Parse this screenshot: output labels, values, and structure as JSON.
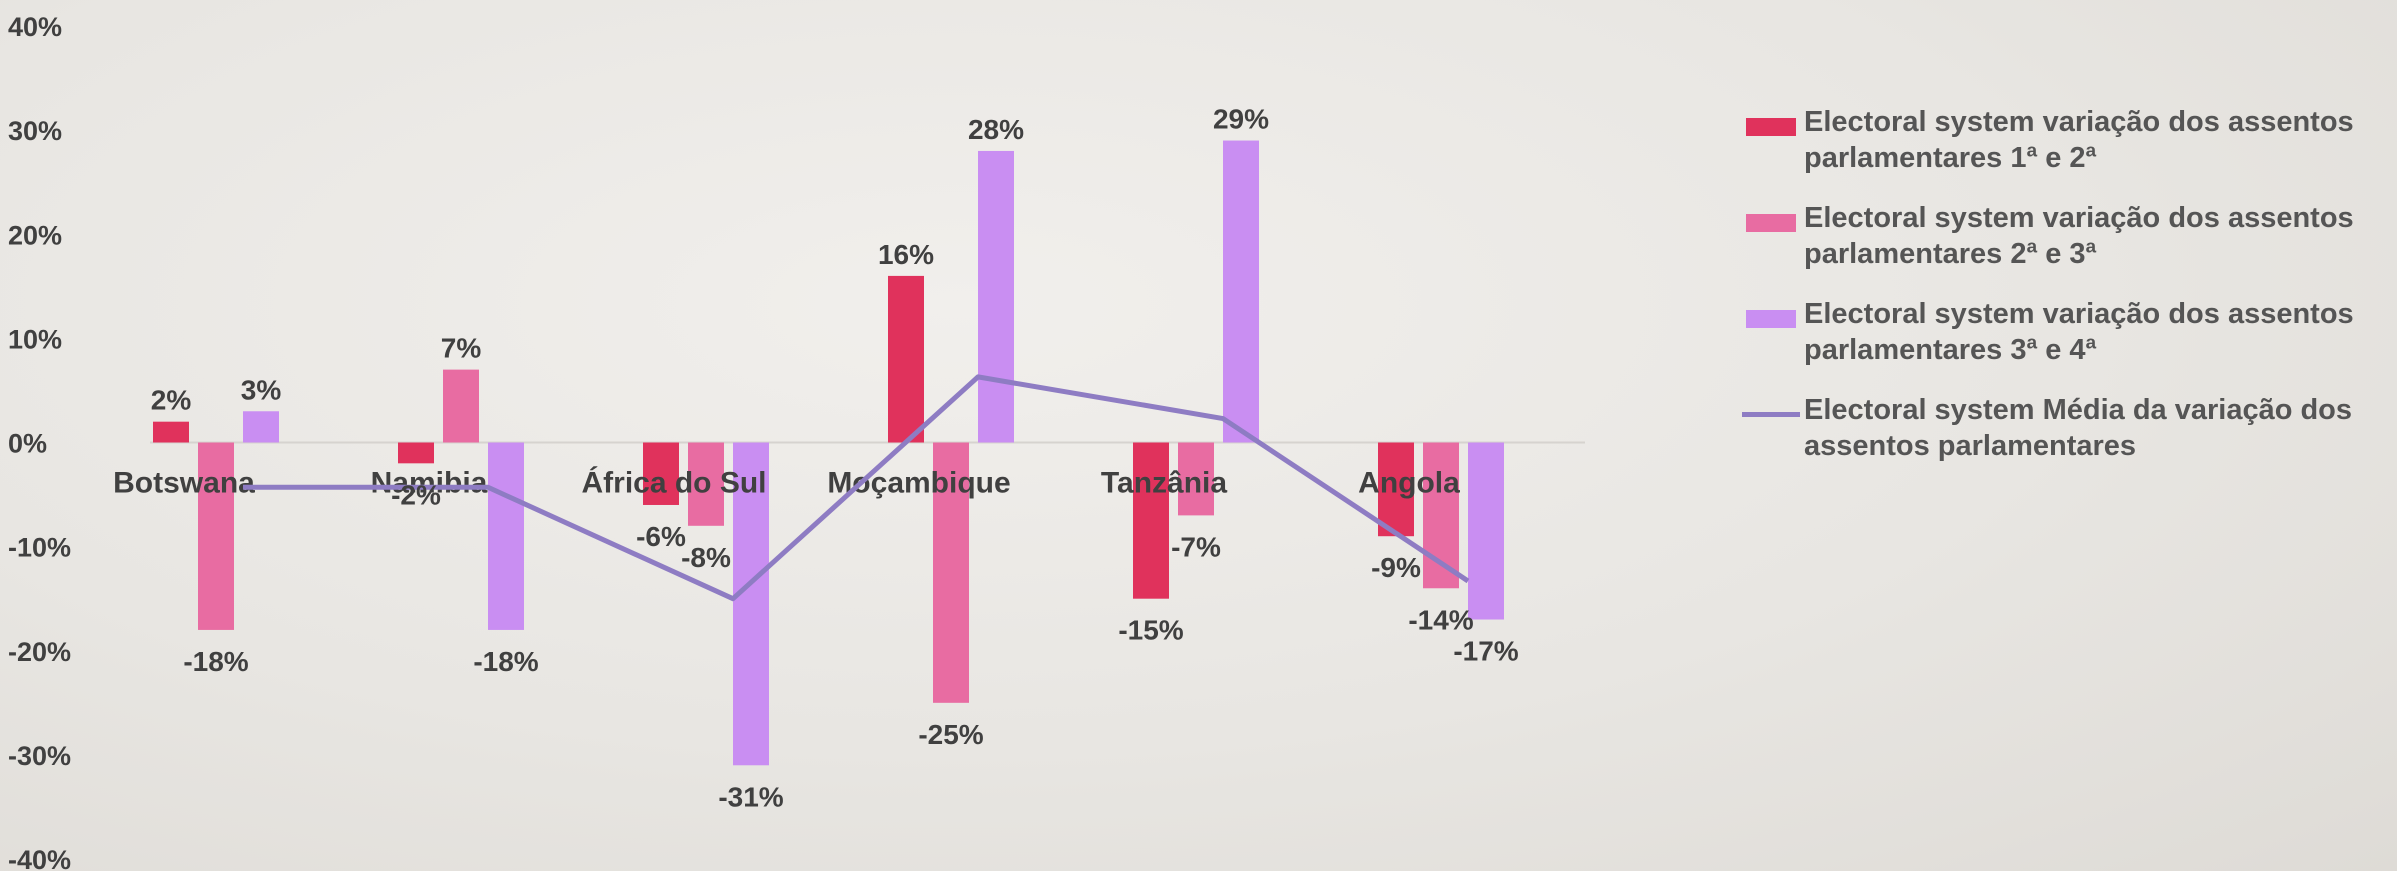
{
  "chart_data": {
    "type": "bar",
    "categories": [
      "Botswana",
      "Namibia",
      "África do Sul",
      "Moçambique",
      "Tanzânia",
      "Angola"
    ],
    "series": [
      {
        "name": "Electoral system variação dos assentos parlamentares 1ª e 2ª",
        "kind": "bar",
        "color": "#e0325c",
        "values": [
          2,
          -2,
          -6,
          16,
          -15,
          -9
        ],
        "labels": [
          "2%",
          "-2%",
          "-6%",
          "16%",
          "-15%",
          "-9%"
        ]
      },
      {
        "name": "Electoral system variação dos assentos parlamentares 2ª e 3ª",
        "kind": "bar",
        "color": "#e86ca2",
        "values": [
          -18,
          7,
          -8,
          -25,
          -7,
          -14
        ],
        "labels": [
          "-18%",
          "7%",
          "-8%",
          "-25%",
          "-7%",
          "-14%"
        ]
      },
      {
        "name": "Electoral system variação dos assentos parlamentares 3ª e 4ª",
        "kind": "bar",
        "color": "#c98ef2",
        "values": [
          3,
          -18,
          -31,
          28,
          29,
          -17
        ],
        "labels": [
          "3%",
          "-18%",
          "-31%",
          "28%",
          "29%",
          "-17%"
        ]
      },
      {
        "name": "Electoral system Média da variação dos assentos parlamentares",
        "kind": "line",
        "color": "#8e7cc3",
        "values": [
          -4.3,
          -4.3,
          -15,
          6.3,
          2.3,
          -13.3
        ]
      }
    ],
    "ylim": [
      -40,
      40
    ],
    "yticks": [
      "-40%",
      "-30%",
      "-20%",
      "-10%",
      "0%",
      "10%",
      "20%",
      "30%",
      "40%"
    ],
    "legend": "right",
    "grid": false
  }
}
